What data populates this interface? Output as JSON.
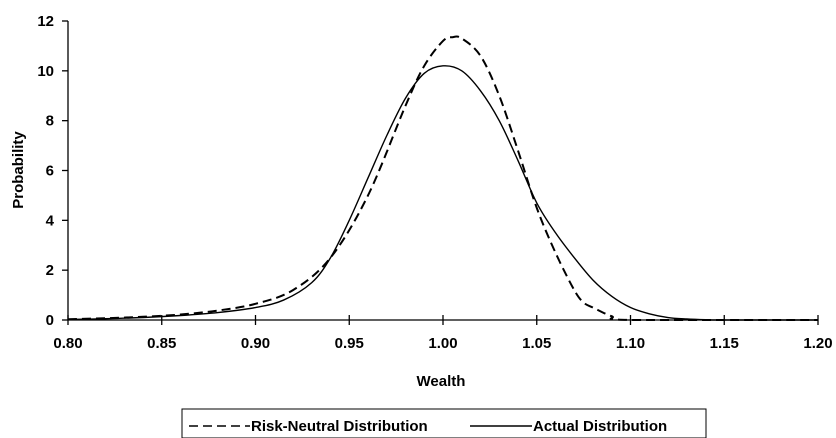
{
  "chart_data": {
    "type": "line",
    "title": "",
    "xlabel": "Wealth",
    "ylabel": "Probability",
    "xlim": [
      0.8,
      1.2
    ],
    "ylim": [
      0,
      12
    ],
    "x_ticks": [
      "0.80",
      "0.85",
      "0.90",
      "0.95",
      "1.00",
      "1.05",
      "1.10",
      "1.15",
      "1.20"
    ],
    "y_ticks": [
      "0",
      "2",
      "4",
      "6",
      "8",
      "10",
      "12"
    ],
    "grid": false,
    "legend_position": "bottom",
    "series": [
      {
        "name": "Risk-Neutral Distribution",
        "style": "dashed",
        "color": "#000000",
        "x": [
          0.8,
          0.82,
          0.84,
          0.86,
          0.88,
          0.9,
          0.92,
          0.94,
          0.96,
          0.98,
          0.99,
          1.0,
          1.005,
          1.01,
          1.02,
          1.03,
          1.04,
          1.05,
          1.06,
          1.07,
          1.075,
          1.08,
          1.09,
          1.1,
          1.2
        ],
        "y": [
          0.03,
          0.07,
          0.13,
          0.22,
          0.38,
          0.65,
          1.2,
          2.5,
          5.0,
          8.6,
          10.2,
          11.2,
          11.35,
          11.3,
          10.6,
          9.0,
          6.8,
          4.5,
          2.7,
          1.2,
          0.7,
          0.5,
          0.15,
          0.0,
          0.0
        ]
      },
      {
        "name": "Actual Distribution",
        "style": "solid",
        "color": "#000000",
        "x": [
          0.8,
          0.82,
          0.84,
          0.86,
          0.88,
          0.9,
          0.915,
          0.93,
          0.94,
          0.95,
          0.96,
          0.97,
          0.98,
          0.99,
          1.0,
          1.01,
          1.02,
          1.03,
          1.04,
          1.05,
          1.06,
          1.07,
          1.08,
          1.09,
          1.1,
          1.11,
          1.12,
          1.13,
          1.14,
          1.15,
          1.2
        ],
        "y": [
          0.02,
          0.05,
          0.1,
          0.18,
          0.3,
          0.5,
          0.8,
          1.5,
          2.5,
          4.0,
          5.7,
          7.4,
          8.9,
          9.9,
          10.2,
          10.0,
          9.2,
          8.0,
          6.4,
          4.7,
          3.5,
          2.5,
          1.6,
          0.95,
          0.5,
          0.25,
          0.1,
          0.04,
          0.01,
          0.0,
          0.0
        ]
      }
    ]
  }
}
